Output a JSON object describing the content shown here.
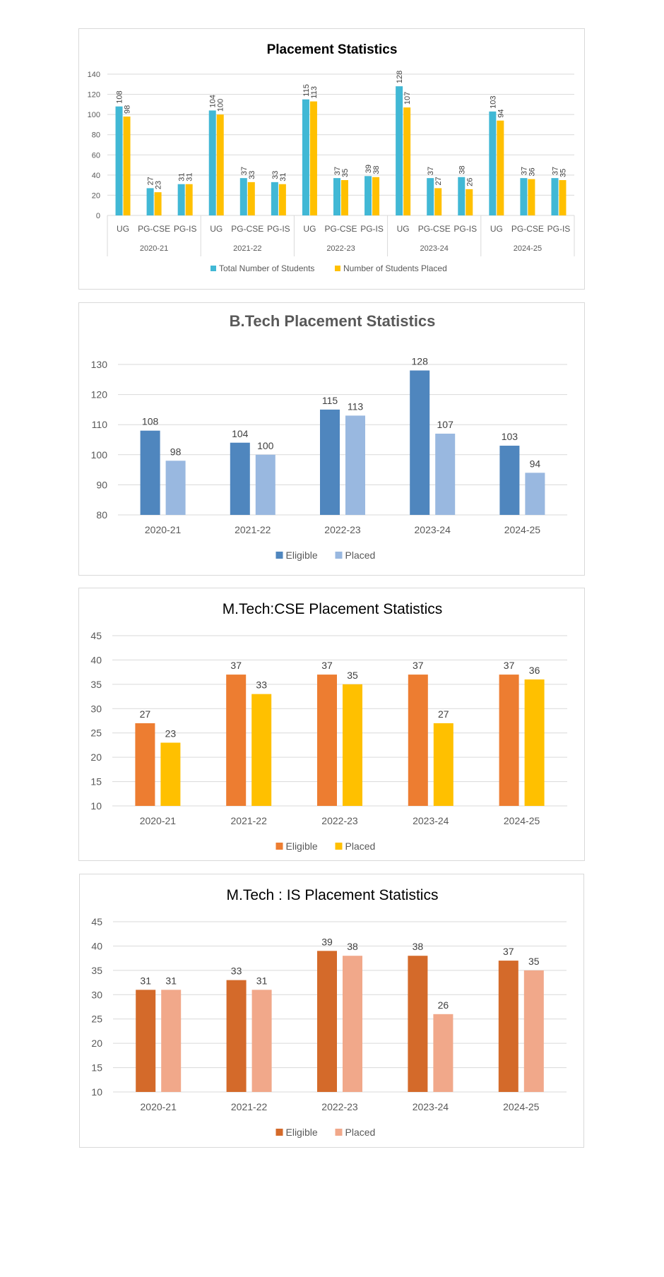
{
  "chart_data": [
    {
      "type": "bar",
      "title": "Placement Statistics",
      "groups": [
        "2020-21",
        "2021-22",
        "2022-23",
        "2023-24",
        "2024-25"
      ],
      "categories": [
        "UG",
        "PG-CSE",
        "PG-IS"
      ],
      "series": [
        {
          "name": "Total Number of Students",
          "color": "#41B8D5",
          "values": [
            [
              108,
              27,
              31
            ],
            [
              104,
              37,
              33
            ],
            [
              115,
              37,
              39
            ],
            [
              128,
              37,
              38
            ],
            [
              103,
              37,
              37
            ]
          ]
        },
        {
          "name": "Number of Students Placed",
          "color": "#FFC000",
          "values": [
            [
              98,
              23,
              31
            ],
            [
              100,
              33,
              31
            ],
            [
              113,
              35,
              38
            ],
            [
              107,
              27,
              26
            ],
            [
              94,
              36,
              35
            ]
          ]
        }
      ],
      "ylim": [
        0,
        140
      ],
      "yticks": [
        "0",
        "20",
        "40",
        "60",
        "80",
        "100",
        "120",
        "140"
      ],
      "legend": "bottom"
    },
    {
      "type": "bar",
      "title": "B.Tech Placement Statistics",
      "categories": [
        "2020-21",
        "2021-22",
        "2022-23",
        "2023-24",
        "2024-25"
      ],
      "series": [
        {
          "name": "Eligible",
          "color": "#4F86BE",
          "values": [
            108,
            104,
            115,
            128,
            103
          ]
        },
        {
          "name": "Placed",
          "color": "#99B8E0",
          "values": [
            98,
            100,
            113,
            107,
            94
          ]
        }
      ],
      "ylim": [
        80,
        130
      ],
      "yticks": [
        "80",
        "90",
        "100",
        "110",
        "120",
        "130"
      ],
      "legend": "bottom"
    },
    {
      "type": "bar",
      "title": "M.Tech:CSE Placement Statistics",
      "categories": [
        "2020-21",
        "2021-22",
        "2022-23",
        "2023-24",
        "2024-25"
      ],
      "series": [
        {
          "name": "Eligible",
          "color": "#ED7D31",
          "values": [
            27,
            37,
            37,
            37,
            37
          ]
        },
        {
          "name": "Placed",
          "color": "#FFC000",
          "values": [
            23,
            33,
            35,
            27,
            36
          ]
        }
      ],
      "ylim": [
        10,
        45
      ],
      "yticks": [
        "10",
        "15",
        "20",
        "25",
        "30",
        "35",
        "40",
        "45"
      ],
      "legend": "bottom"
    },
    {
      "type": "bar",
      "title": "M.Tech : IS Placement Statistics",
      "categories": [
        "2020-21",
        "2021-22",
        "2022-23",
        "2023-24",
        "2024-25"
      ],
      "series": [
        {
          "name": "Eligible",
          "color": "#D46A2A",
          "values": [
            31,
            33,
            39,
            38,
            37
          ]
        },
        {
          "name": "Placed",
          "color": "#F1A88A",
          "values": [
            31,
            31,
            38,
            26,
            35
          ]
        }
      ],
      "ylim": [
        10,
        45
      ],
      "yticks": [
        "10",
        "15",
        "20",
        "25",
        "30",
        "35",
        "40",
        "45"
      ],
      "legend": "bottom"
    }
  ]
}
